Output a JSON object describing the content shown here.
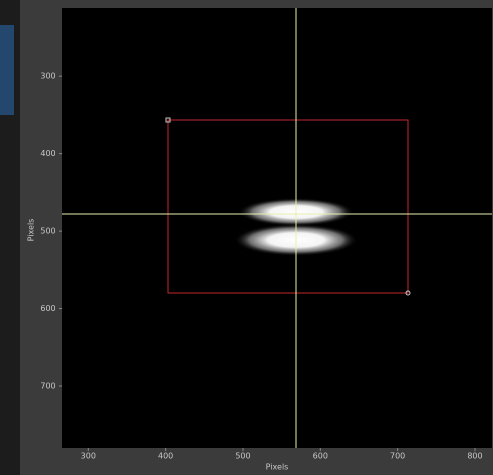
{
  "chart_data": {
    "type": "image",
    "x_label": "Pixels",
    "y_label": "Pixels",
    "xlim": [
      266,
      822
    ],
    "xticks": [
      300,
      400,
      500,
      600,
      700,
      800
    ],
    "ylim": [
      212,
      780
    ],
    "yticks": [
      300,
      400,
      500,
      600,
      700
    ],
    "y_inverted": true
  }
}
